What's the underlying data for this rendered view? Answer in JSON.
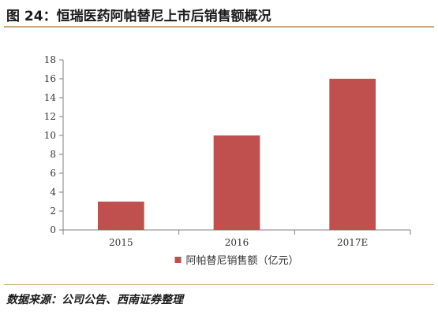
{
  "figure": {
    "title": "图 24：恒瑞医药阿帕替尼上市后销售额概况",
    "source": "数据来源：公司公告、西南证券整理"
  },
  "colors": {
    "bar": "#c0504d",
    "axis": "#7f7f7f",
    "rule": "#c9a87a"
  },
  "chart_data": {
    "type": "bar",
    "categories": [
      "2015",
      "2016",
      "2017E"
    ],
    "series": [
      {
        "name": "阿帕替尼销售额（亿元）",
        "values": [
          3,
          10,
          16
        ]
      }
    ],
    "ylim": [
      0,
      18
    ],
    "yticks": [
      0,
      2,
      4,
      6,
      8,
      10,
      12,
      14,
      16,
      18
    ],
    "grid": false,
    "legend": "bottom-center"
  }
}
